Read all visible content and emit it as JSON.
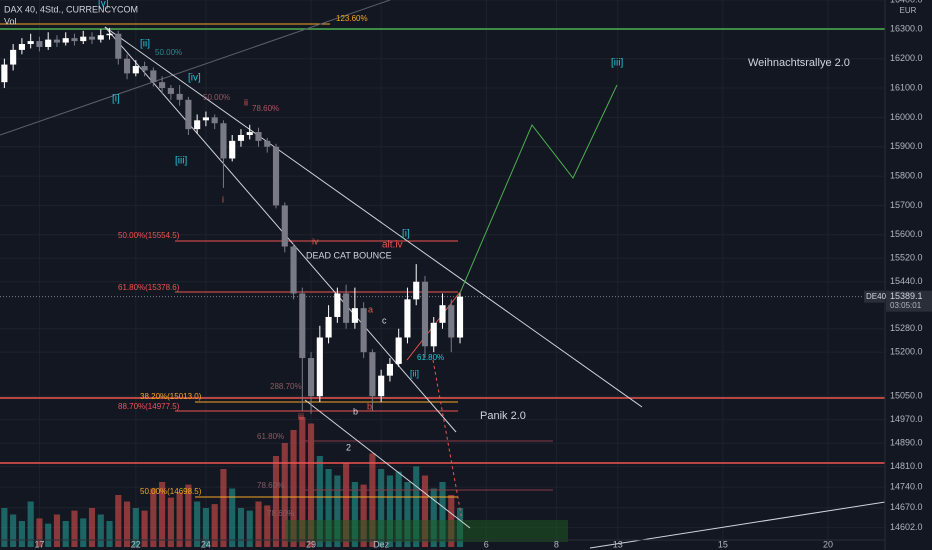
{
  "chart_data": {
    "type": "candlestick",
    "title": "DAX 40, 4Std., CURRENCYCOM",
    "volume_label": "Vol",
    "currency": "EUR",
    "symbol": "DE40",
    "countdown": "03:05:01",
    "categories": [
      null,
      null,
      null,
      null,
      "17",
      null,
      null,
      null,
      null,
      null,
      null,
      null,
      null,
      null,
      null,
      "22",
      null,
      null,
      null,
      null,
      null,
      null,
      null,
      "24",
      null,
      null,
      null,
      null,
      null,
      null,
      null,
      null,
      null,
      null,
      null,
      "29",
      null,
      null,
      null,
      null,
      null,
      null,
      null,
      "Dez",
      null,
      null,
      null,
      null,
      null,
      null,
      null,
      null,
      null,
      null,
      null,
      "6",
      null,
      null,
      null,
      null,
      null,
      null,
      null,
      "8",
      null,
      null,
      null,
      null,
      null,
      null,
      "13",
      null,
      null,
      null,
      null,
      null,
      null,
      null,
      null,
      null,
      null,
      null,
      "15",
      null,
      null,
      null,
      null,
      null,
      null,
      null,
      null,
      null,
      null,
      null,
      "20",
      null,
      null,
      null,
      null,
      null,
      null
    ],
    "open": [
      16120,
      16180,
      16230,
      16250,
      16260,
      16240,
      16265,
      16255,
      16270,
      16260,
      16275,
      16265,
      16280,
      16285,
      16200,
      16150,
      16175,
      16160,
      16120,
      16100,
      16080,
      16060,
      15960,
      15990,
      16000,
      15980,
      15860,
      15920,
      15940,
      15950,
      15920,
      15900,
      15700,
      15560,
      15400,
      15180,
      15050,
      15250,
      15320,
      15400,
      15300,
      15350,
      15200,
      15050,
      15120,
      15160,
      15250,
      15380,
      15440,
      15220,
      15300,
      15360,
      15250,
      null,
      null,
      null,
      null,
      null,
      null,
      null,
      null,
      null,
      null,
      null,
      null,
      null,
      null,
      null,
      null,
      null,
      null,
      null,
      null,
      null,
      null,
      null,
      null,
      null,
      null,
      null,
      null,
      null,
      null,
      null,
      null,
      null,
      null,
      null,
      null,
      null,
      null,
      null,
      null,
      null,
      null,
      null,
      null,
      null,
      null,
      null,
      null
    ],
    "high": [
      16200,
      16250,
      16270,
      16285,
      16275,
      16290,
      16280,
      16290,
      16285,
      16295,
      16290,
      16300,
      16305,
      16295,
      16215,
      16195,
      16190,
      16170,
      16140,
      16110,
      16110,
      16070,
      16010,
      16020,
      16010,
      15990,
      15940,
      15960,
      15975,
      15965,
      15930,
      15910,
      15710,
      15570,
      15420,
      15200,
      15290,
      15360,
      15420,
      15430,
      15420,
      15370,
      15210,
      15140,
      15180,
      15280,
      15420,
      15500,
      15460,
      15320,
      15400,
      15380,
      15400,
      null,
      null,
      null,
      null,
      null,
      null,
      null,
      null,
      null,
      null,
      null,
      null,
      null,
      null,
      null,
      null,
      null,
      null,
      null,
      null,
      null,
      null,
      null,
      null,
      null,
      null,
      null,
      null,
      null,
      null,
      null,
      null,
      null,
      null,
      null,
      null,
      null,
      null,
      null,
      null,
      null,
      null,
      null,
      null,
      null,
      null,
      null,
      null
    ],
    "low": [
      16100,
      16160,
      16215,
      16235,
      16225,
      16230,
      16240,
      16245,
      16245,
      16250,
      16250,
      16255,
      16265,
      16180,
      16130,
      16140,
      16140,
      16105,
      16080,
      16060,
      16040,
      15940,
      15945,
      15970,
      15960,
      15760,
      15850,
      15900,
      15925,
      15900,
      15880,
      15690,
      15540,
      15380,
      15000,
      14990,
      15030,
      15230,
      15300,
      15280,
      15280,
      15180,
      15000,
      15030,
      15100,
      15150,
      15230,
      15360,
      15180,
      15200,
      15280,
      15200,
      15230,
      null,
      null,
      null,
      null,
      null,
      null,
      null,
      null,
      null,
      null,
      null,
      null,
      null,
      null,
      null,
      null,
      null,
      null,
      null,
      null,
      null,
      null,
      null,
      null,
      null,
      null,
      null,
      null,
      null,
      null,
      null,
      null,
      null,
      null,
      null,
      null,
      null,
      null,
      null,
      null,
      null,
      null,
      null,
      null,
      null,
      null,
      null,
      null
    ],
    "close": [
      16180,
      16230,
      16250,
      16260,
      16240,
      16265,
      16255,
      16270,
      16260,
      16275,
      16265,
      16280,
      16285,
      16200,
      16150,
      16175,
      16160,
      16120,
      16100,
      16080,
      16060,
      15960,
      15990,
      16000,
      15980,
      15860,
      15920,
      15940,
      15950,
      15920,
      15900,
      15700,
      15560,
      15400,
      15180,
      15050,
      15250,
      15320,
      15400,
      15300,
      15350,
      15200,
      15050,
      15120,
      15160,
      15250,
      15380,
      15440,
      15220,
      15300,
      15360,
      15250,
      15389.1,
      null,
      null,
      null,
      null,
      null,
      null,
      null,
      null,
      null,
      null,
      null,
      null,
      null,
      null,
      null,
      null,
      null,
      null,
      null,
      null,
      null,
      null,
      null,
      null,
      null,
      null,
      null,
      null,
      null,
      null,
      null,
      null,
      null,
      null,
      null,
      null,
      null,
      null,
      null,
      null,
      null,
      null,
      null,
      null,
      null,
      null,
      null,
      null
    ],
    "up_color": "#ffffff",
    "down_color": "#787b86",
    "ylim": [
      14560,
      16400
    ],
    "yticks": [
      {
        "value": 16400,
        "label": "16400.0"
      },
      {
        "value": 16300,
        "label": "16300.0"
      },
      {
        "value": 16200,
        "label": "16200.0"
      },
      {
        "value": 16100,
        "label": "16100.0"
      },
      {
        "value": 16000,
        "label": "16000.0"
      },
      {
        "value": 15900,
        "label": "15900.0"
      },
      {
        "value": 15800,
        "label": "15800.0"
      },
      {
        "value": 15700,
        "label": "15700.0"
      },
      {
        "value": 15600,
        "label": "15600.0"
      },
      {
        "value": 15520,
        "label": "15520.0"
      },
      {
        "value": 15440,
        "label": "15440.0"
      },
      {
        "value": 15280,
        "label": "15280.0"
      },
      {
        "value": 15200,
        "label": "15200.0"
      },
      {
        "value": 15050,
        "label": "15050.0"
      },
      {
        "value": 14970,
        "label": "14970.0"
      },
      {
        "value": 14890,
        "label": "14890.0"
      },
      {
        "value": 14810,
        "label": "14810.0"
      },
      {
        "value": 14740,
        "label": "14740.0"
      },
      {
        "value": 14670,
        "label": "14670.0"
      },
      {
        "value": 14602,
        "label": "14602.0"
      }
    ],
    "grid": true,
    "volume": {
      "ylim": [
        0,
        100
      ],
      "up_color": "#26a69a",
      "down_color": "#ef5350",
      "values": [
        30,
        25,
        20,
        35,
        22,
        18,
        25,
        20,
        28,
        22,
        30,
        25,
        20,
        40,
        35,
        30,
        28,
        45,
        50,
        38,
        42,
        48,
        35,
        30,
        33,
        60,
        45,
        30,
        28,
        35,
        32,
        70,
        80,
        90,
        100,
        95,
        70,
        60,
        55,
        65,
        50,
        48,
        72,
        60,
        55,
        58,
        50,
        62,
        55,
        45,
        50,
        40,
        30,
        null,
        null,
        null,
        null,
        null,
        null,
        null,
        null,
        null,
        null,
        null,
        null,
        null,
        null,
        null,
        null,
        null,
        null,
        null,
        null,
        null,
        null,
        null,
        null,
        null,
        null,
        null,
        null,
        null,
        null,
        null,
        null,
        null,
        null,
        null,
        null,
        null,
        null,
        null,
        null,
        null,
        null,
        null,
        null,
        null,
        null,
        null,
        null
      ]
    },
    "annotations": [
      "[v]",
      "123.60%",
      "[ii]",
      "50.00%",
      "[iv]",
      "50.00%",
      "ii",
      "78.60%",
      "[i]",
      "[iii]",
      "i",
      "50.00%(15554.5)",
      "iv",
      "[i]",
      "alt.iv",
      "DEAD CAT BOUNCE",
      "61.80%(15378.6)",
      "a",
      "c",
      "61.80%",
      "[ii]",
      "288.70%",
      "38.20%(15013.0)",
      "88.70%(14977.5)",
      "b",
      "b",
      "iii",
      "61.80%",
      "2",
      "78.60%",
      "50.00%(14698.5)",
      "78.60%",
      "Panik 2.0",
      "[iii]",
      "Weihnachtsrallye 2.0"
    ]
  }
}
